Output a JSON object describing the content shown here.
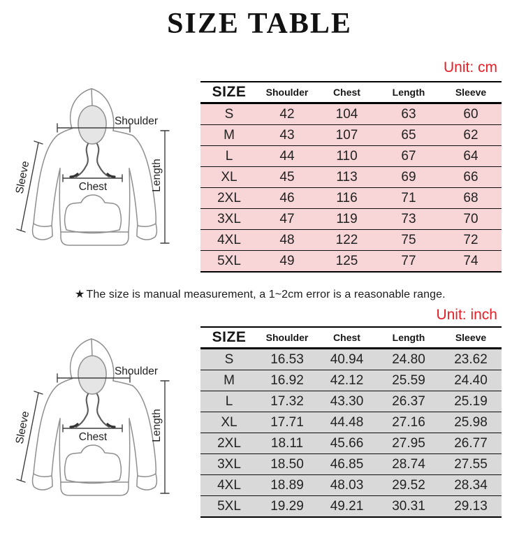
{
  "title": "SIZE TABLE",
  "note": {
    "star": "★",
    "text": "The size is manual measurement, a 1~2cm error is a reasonable range."
  },
  "colors": {
    "accent_red": "#e61e25",
    "row_pink": "#f8d6d8",
    "row_gray": "#d9d9d9",
    "border_black": "#000000"
  },
  "diagram": {
    "labels": {
      "shoulder": "Shoulder",
      "sleeve": "Sleeve",
      "chest": "Chest",
      "length": "Length"
    }
  },
  "tables": [
    {
      "unit_label": "Unit: cm",
      "columns": [
        "SIZE",
        "Shoulder",
        "Chest",
        "Length",
        "Sleeve"
      ],
      "rows": [
        [
          "S",
          "42",
          "104",
          "63",
          "60"
        ],
        [
          "M",
          "43",
          "107",
          "65",
          "62"
        ],
        [
          "L",
          "44",
          "110",
          "67",
          "64"
        ],
        [
          "XL",
          "45",
          "113",
          "69",
          "66"
        ],
        [
          "2XL",
          "46",
          "116",
          "71",
          "68"
        ],
        [
          "3XL",
          "47",
          "119",
          "73",
          "70"
        ],
        [
          "4XL",
          "48",
          "122",
          "75",
          "72"
        ],
        [
          "5XL",
          "49",
          "125",
          "77",
          "74"
        ]
      ]
    },
    {
      "unit_label": "Unit: inch",
      "columns": [
        "SIZE",
        "Shoulder",
        "Chest",
        "Length",
        "Sleeve"
      ],
      "rows": [
        [
          "S",
          "16.53",
          "40.94",
          "24.80",
          "23.62"
        ],
        [
          "M",
          "16.92",
          "42.12",
          "25.59",
          "24.40"
        ],
        [
          "L",
          "17.32",
          "43.30",
          "26.37",
          "25.19"
        ],
        [
          "XL",
          "17.71",
          "44.48",
          "27.16",
          "25.98"
        ],
        [
          "2XL",
          "18.11",
          "45.66",
          "27.95",
          "26.77"
        ],
        [
          "3XL",
          "18.50",
          "46.85",
          "28.74",
          "27.55"
        ],
        [
          "4XL",
          "18.89",
          "48.03",
          "29.52",
          "28.34"
        ],
        [
          "5XL",
          "19.29",
          "49.21",
          "30.31",
          "29.13"
        ]
      ]
    }
  ]
}
